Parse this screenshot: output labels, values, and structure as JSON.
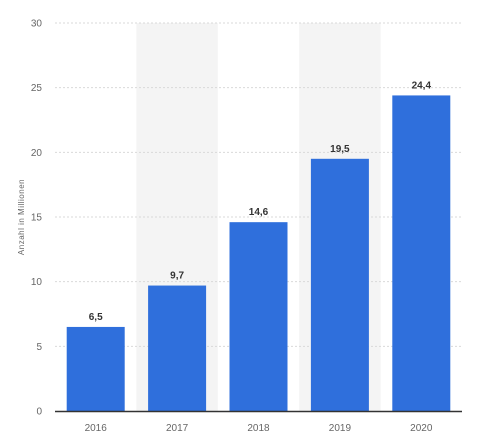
{
  "chart_data": {
    "type": "bar",
    "categories": [
      "2016",
      "2017",
      "2018",
      "2019",
      "2020"
    ],
    "values": [
      6.5,
      9.7,
      14.6,
      19.5,
      24.4
    ],
    "data_labels": [
      "6,5",
      "9,7",
      "14,6",
      "19,5",
      "24,4"
    ],
    "ylabel": "Anzahl in Millionen",
    "xlabel": "",
    "ylim": [
      0,
      30
    ],
    "yticks": [
      0,
      5,
      10,
      15,
      20,
      25,
      30
    ],
    "grid": true,
    "legend": "none",
    "colors": {
      "bar": "#2f6fdc",
      "band": "#f4f4f4",
      "grid": "#d9d9d9",
      "axis": "#333333"
    }
  }
}
